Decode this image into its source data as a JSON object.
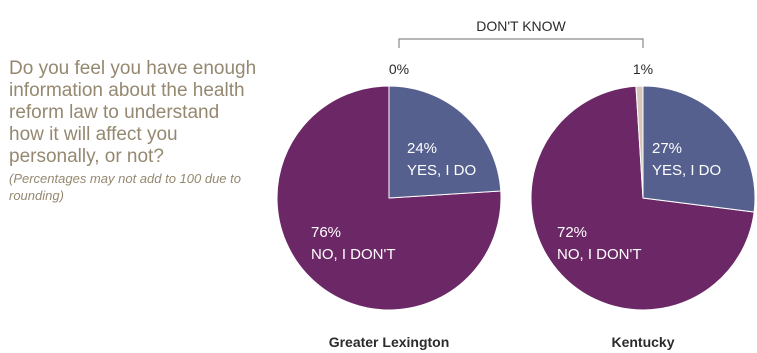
{
  "question": {
    "text": "Do you feel you have enough information about the health reform law to understand how it will affect you personally, or not?",
    "note": "(Percentages may not add to 100 due to rounding)"
  },
  "chart_data": {
    "type": "pie",
    "bracket_label": "DON'T KNOW",
    "categories": [
      "YES, I DO",
      "NO, I DON'T",
      "DON'T KNOW"
    ],
    "colors": {
      "YES, I DO": "#56608f",
      "NO, I DON'T": "#6c2866",
      "DON'T KNOW": "#d4c8ba"
    },
    "pies": [
      {
        "title": "Greater Lexington",
        "values": {
          "YES, I DO": 24,
          "NO, I DON'T": 76,
          "DON'T KNOW": 0
        },
        "labels": {
          "yes_pct": "24%",
          "yes_text": "YES, I DO",
          "no_pct": "76%",
          "no_text": "NO, I DON'T",
          "dk_pct": "0%"
        }
      },
      {
        "title": "Kentucky",
        "values": {
          "YES, I DO": 27,
          "NO, I DON'T": 72,
          "DON'T KNOW": 1
        },
        "labels": {
          "yes_pct": "27%",
          "yes_text": "YES, I DO",
          "no_pct": "72%",
          "no_text": "NO, I DON'T",
          "dk_pct": "1%"
        }
      }
    ]
  }
}
